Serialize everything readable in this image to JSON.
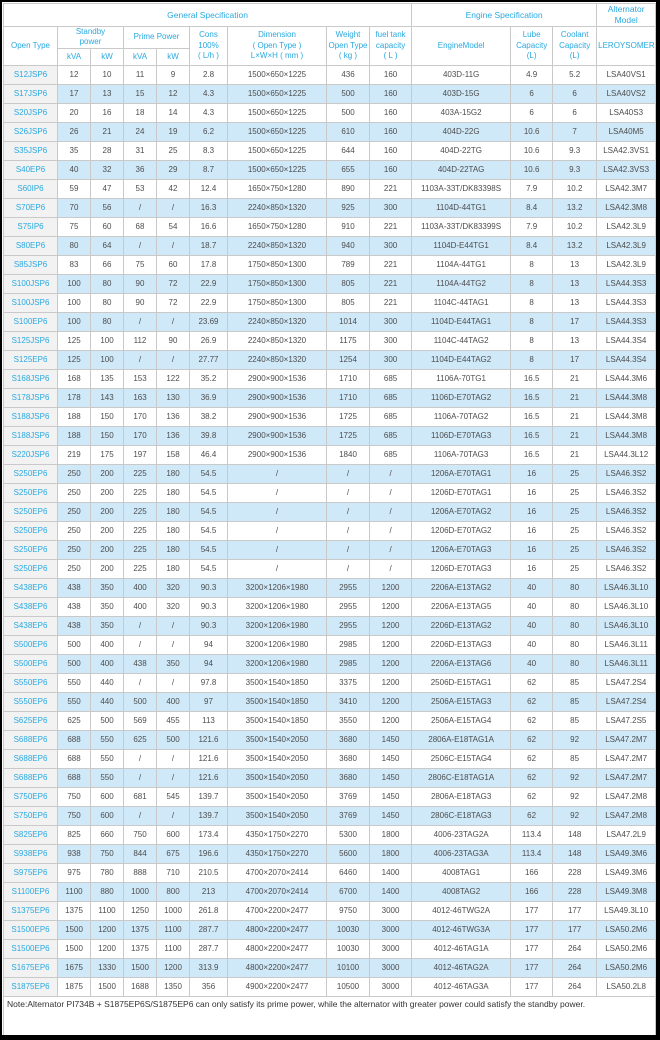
{
  "colors": {
    "accent_blue": "#29a9e1",
    "row_stripe_blue": "#cfe9f9",
    "model_column_bg": "#f2f2f2",
    "data_text": "#4d4d4d",
    "grid_border": "#c9c9c9"
  },
  "table": {
    "groups": {
      "general": "General Specification",
      "engine": "Engine Specification",
      "alternator": "Alternator Model"
    },
    "headers": {
      "open_type": "Open Type",
      "standby_power": "Standby\npower",
      "prime_power": "Prime Power",
      "kva": "kVA",
      "kw": "kW",
      "cons": "Cons\n100%\n( L/h )",
      "dimension": "Dimension\n( Open Type )\nL×W×H ( mm )",
      "weight": "Weight\nOpen Type\n( kg )",
      "fuel_tank": "fuel tank\ncapacity\n( L )",
      "engine_model": "EngineModel",
      "lube": "Lube\nCapacity\n(L)",
      "coolant": "Coolant\nCapacity\n(L)",
      "alternator": "LEROYSOMER"
    },
    "rows": [
      [
        "S12JSP6",
        "12",
        "10",
        "11",
        "9",
        "2.8",
        "1500×650×1225",
        "436",
        "160",
        "403D-11G",
        "4.9",
        "5.2",
        "LSA40VS1"
      ],
      [
        "S17JSP6",
        "17",
        "13",
        "15",
        "12",
        "4.3",
        "1500×650×1225",
        "500",
        "160",
        "403D-15G",
        "6",
        "6",
        "LSA40VS2"
      ],
      [
        "S20JSP6",
        "20",
        "16",
        "18",
        "14",
        "4.3",
        "1500×650×1225",
        "500",
        "160",
        "403A-15G2",
        "6",
        "6",
        "LSA40S3"
      ],
      [
        "S26JSP6",
        "26",
        "21",
        "24",
        "19",
        "6.2",
        "1500×650×1225",
        "610",
        "160",
        "404D-22G",
        "10.6",
        "7",
        "LSA40M5"
      ],
      [
        "S35JSP6",
        "35",
        "28",
        "31",
        "25",
        "8.3",
        "1500×650×1225",
        "644",
        "160",
        "404D-22TG",
        "10.6",
        "9.3",
        "LSA42.3VS1"
      ],
      [
        "S40EP6",
        "40",
        "32",
        "36",
        "29",
        "8.7",
        "1500×650×1225",
        "655",
        "160",
        "404D-22TAG",
        "10.6",
        "9.3",
        "LSA42.3VS3"
      ],
      [
        "S60IP6",
        "59",
        "47",
        "53",
        "42",
        "12.4",
        "1650×750×1280",
        "890",
        "221",
        "1103A-33T/DK83398S",
        "7.9",
        "10.2",
        "LSA42.3M7"
      ],
      [
        "S70EP6",
        "70",
        "56",
        "/",
        "/",
        "16.3",
        "2240×850×1320",
        "925",
        "300",
        "1104D-44TG1",
        "8.4",
        "13.2",
        "LSA42.3M8"
      ],
      [
        "S75IP6",
        "75",
        "60",
        "68",
        "54",
        "16.6",
        "1650×750×1280",
        "910",
        "221",
        "1103A-33T/DK83399S",
        "7.9",
        "10.2",
        "LSA42.3L9"
      ],
      [
        "S80EP6",
        "80",
        "64",
        "/",
        "/",
        "18.7",
        "2240×850×1320",
        "940",
        "300",
        "1104D-E44TG1",
        "8.4",
        "13.2",
        "LSA42.3L9"
      ],
      [
        "S85JSP6",
        "83",
        "66",
        "75",
        "60",
        "17.8",
        "1750×850×1300",
        "789",
        "221",
        "1104A-44TG1",
        "8",
        "13",
        "LSA42.3L9"
      ],
      [
        "S100JSP6",
        "100",
        "80",
        "90",
        "72",
        "22.9",
        "1750×850×1300",
        "805",
        "221",
        "1104A-44TG2",
        "8",
        "13",
        "LSA44.3S3"
      ],
      [
        "S100JSP6",
        "100",
        "80",
        "90",
        "72",
        "22.9",
        "1750×850×1300",
        "805",
        "221",
        "1104C-44TAG1",
        "8",
        "13",
        "LSA44.3S3"
      ],
      [
        "S100EP6",
        "100",
        "80",
        "/",
        "/",
        "23.69",
        "2240×850×1320",
        "1014",
        "300",
        "1104D-E44TAG1",
        "8",
        "17",
        "LSA44.3S3"
      ],
      [
        "S125JSP6",
        "125",
        "100",
        "112",
        "90",
        "26.9",
        "2240×850×1320",
        "1175",
        "300",
        "1104C-44TAG2",
        "8",
        "13",
        "LSA44.3S4"
      ],
      [
        "S125EP6",
        "125",
        "100",
        "/",
        "/",
        "27.77",
        "2240×850×1320",
        "1254",
        "300",
        "1104D-E44TAG2",
        "8",
        "17",
        "LSA44.3S4"
      ],
      [
        "S168JSP6",
        "168",
        "135",
        "153",
        "122",
        "35.2",
        "2900×900×1536",
        "1710",
        "685",
        "1106A-70TG1",
        "16.5",
        "21",
        "LSA44.3M6"
      ],
      [
        "S178JSP6",
        "178",
        "143",
        "163",
        "130",
        "36.9",
        "2900×900×1536",
        "1710",
        "685",
        "1106D-E70TAG2",
        "16.5",
        "21",
        "LSA44.3M8"
      ],
      [
        "S188JSP6",
        "188",
        "150",
        "170",
        "136",
        "38.2",
        "2900×900×1536",
        "1725",
        "685",
        "1106A-70TAG2",
        "16.5",
        "21",
        "LSA44.3M8"
      ],
      [
        "S188JSP6",
        "188",
        "150",
        "170",
        "136",
        "39.8",
        "2900×900×1536",
        "1725",
        "685",
        "1106D-E70TAG3",
        "16.5",
        "21",
        "LSA44.3M8"
      ],
      [
        "S220JSP6",
        "219",
        "175",
        "197",
        "158",
        "46.4",
        "2900×900×1536",
        "1840",
        "685",
        "1106A-70TAG3",
        "16.5",
        "21",
        "LSA44.3L12"
      ],
      [
        "S250EP6",
        "250",
        "200",
        "225",
        "180",
        "54.5",
        "/",
        "/",
        "/",
        "1206A-E70TAG1",
        "16",
        "25",
        "LSA46.3S2"
      ],
      [
        "S250EP6",
        "250",
        "200",
        "225",
        "180",
        "54.5",
        "/",
        "/",
        "/",
        "1206D-E70TAG1",
        "16",
        "25",
        "LSA46.3S2"
      ],
      [
        "S250EP6",
        "250",
        "200",
        "225",
        "180",
        "54.5",
        "/",
        "/",
        "/",
        "1206A-E70TAG2",
        "16",
        "25",
        "LSA46.3S2"
      ],
      [
        "S250EP6",
        "250",
        "200",
        "225",
        "180",
        "54.5",
        "/",
        "/",
        "/",
        "1206D-E70TAG2",
        "16",
        "25",
        "LSA46.3S2"
      ],
      [
        "S250EP6",
        "250",
        "200",
        "225",
        "180",
        "54.5",
        "/",
        "/",
        "/",
        "1206A-E70TAG3",
        "16",
        "25",
        "LSA46.3S2"
      ],
      [
        "S250EP6",
        "250",
        "200",
        "225",
        "180",
        "54.5",
        "/",
        "/",
        "/",
        "1206D-E70TAG3",
        "16",
        "25",
        "LSA46.3S2"
      ],
      [
        "S438EP6",
        "438",
        "350",
        "400",
        "320",
        "90.3",
        "3200×1206×1980",
        "2955",
        "1200",
        "2206A-E13TAG2",
        "40",
        "80",
        "LSA46.3L10"
      ],
      [
        "S438EP6",
        "438",
        "350",
        "400",
        "320",
        "90.3",
        "3200×1206×1980",
        "2955",
        "1200",
        "2206A-E13TAG5",
        "40",
        "80",
        "LSA46.3L10"
      ],
      [
        "S438EP6",
        "438",
        "350",
        "/",
        "/",
        "90.3",
        "3200×1206×1980",
        "2955",
        "1200",
        "2206D-E13TAG2",
        "40",
        "80",
        "LSA46.3L10"
      ],
      [
        "S500EP6",
        "500",
        "400",
        "/",
        "/",
        "94",
        "3200×1206×1980",
        "2985",
        "1200",
        "2206D-E13TAG3",
        "40",
        "80",
        "LSA46.3L11"
      ],
      [
        "S500EP6",
        "500",
        "400",
        "438",
        "350",
        "94",
        "3200×1206×1980",
        "2985",
        "1200",
        "2206A-E13TAG6",
        "40",
        "80",
        "LSA46.3L11"
      ],
      [
        "S550EP6",
        "550",
        "440",
        "/",
        "/",
        "97.8",
        "3500×1540×1850",
        "3375",
        "1200",
        "2506D-E15TAG1",
        "62",
        "85",
        "LSA47.2S4"
      ],
      [
        "S550EP6",
        "550",
        "440",
        "500",
        "400",
        "97",
        "3500×1540×1850",
        "3410",
        "1200",
        "2506A-E15TAG3",
        "62",
        "85",
        "LSA47.2S4"
      ],
      [
        "S625EP6",
        "625",
        "500",
        "569",
        "455",
        "113",
        "3500×1540×1850",
        "3550",
        "1200",
        "2506A-E15TAG4",
        "62",
        "85",
        "LSA47.2S5"
      ],
      [
        "S688EP6",
        "688",
        "550",
        "625",
        "500",
        "121.6",
        "3500×1540×2050",
        "3680",
        "1450",
        "2806A-E18TAG1A",
        "62",
        "92",
        "LSA47.2M7"
      ],
      [
        "S688EP6",
        "688",
        "550",
        "/",
        "/",
        "121.6",
        "3500×1540×2050",
        "3680",
        "1450",
        "2506C-E15TAG4",
        "62",
        "85",
        "LSA47.2M7"
      ],
      [
        "S688EP6",
        "688",
        "550",
        "/",
        "/",
        "121.6",
        "3500×1540×2050",
        "3680",
        "1450",
        "2806C-E18TAG1A",
        "62",
        "92",
        "LSA47.2M7"
      ],
      [
        "S750EP6",
        "750",
        "600",
        "681",
        "545",
        "139.7",
        "3500×1540×2050",
        "3769",
        "1450",
        "2806A-E18TAG3",
        "62",
        "92",
        "LSA47.2M8"
      ],
      [
        "S750EP6",
        "750",
        "600",
        "/",
        "/",
        "139.7",
        "3500×1540×2050",
        "3769",
        "1450",
        "2806C-E18TAG3",
        "62",
        "92",
        "LSA47.2M8"
      ],
      [
        "S825EP6",
        "825",
        "660",
        "750",
        "600",
        "173.4",
        "4350×1750×2270",
        "5300",
        "1800",
        "4006-23TAG2A",
        "113.4",
        "148",
        "LSA47.2L9"
      ],
      [
        "S938EP6",
        "938",
        "750",
        "844",
        "675",
        "196.6",
        "4350×1750×2270",
        "5600",
        "1800",
        "4006-23TAG3A",
        "113.4",
        "148",
        "LSA49.3M6"
      ],
      [
        "S975EP6",
        "975",
        "780",
        "888",
        "710",
        "210.5",
        "4700×2070×2414",
        "6460",
        "1400",
        "4008TAG1",
        "166",
        "228",
        "LSA49.3M6"
      ],
      [
        "S1100EP6",
        "1100",
        "880",
        "1000",
        "800",
        "213",
        "4700×2070×2414",
        "6700",
        "1400",
        "4008TAG2",
        "166",
        "228",
        "LSA49.3M8"
      ],
      [
        "S1375EP6",
        "1375",
        "1100",
        "1250",
        "1000",
        "261.8",
        "4700×2200×2477",
        "9750",
        "3000",
        "4012-46TWG2A",
        "177",
        "177",
        "LSA49.3L10"
      ],
      [
        "S1500EP6",
        "1500",
        "1200",
        "1375",
        "1100",
        "287.7",
        "4800×2200×2477",
        "10030",
        "3000",
        "4012-46TWG3A",
        "177",
        "177",
        "LSA50.2M6"
      ],
      [
        "S1500EP6",
        "1500",
        "1200",
        "1375",
        "1100",
        "287.7",
        "4800×2200×2477",
        "10030",
        "3000",
        "4012-46TAG1A",
        "177",
        "264",
        "LSA50.2M6"
      ],
      [
        "S1675EP6",
        "1675",
        "1330",
        "1500",
        "1200",
        "313.9",
        "4800×2200×2477",
        "10100",
        "3000",
        "4012-46TAG2A",
        "177",
        "264",
        "LSA50.2M6"
      ],
      [
        "S1875EP6",
        "1875",
        "1500",
        "1688",
        "1350",
        "356",
        "4900×2200×2477",
        "10500",
        "3000",
        "4012-46TAG3A",
        "177",
        "264",
        "LSA50.2L8"
      ]
    ],
    "note": "Note:Alternator PI734B + S1875EP6S/S1875EP6 can only satisfy its prime power, while the alternator with greater power could satisfy the standby power."
  }
}
